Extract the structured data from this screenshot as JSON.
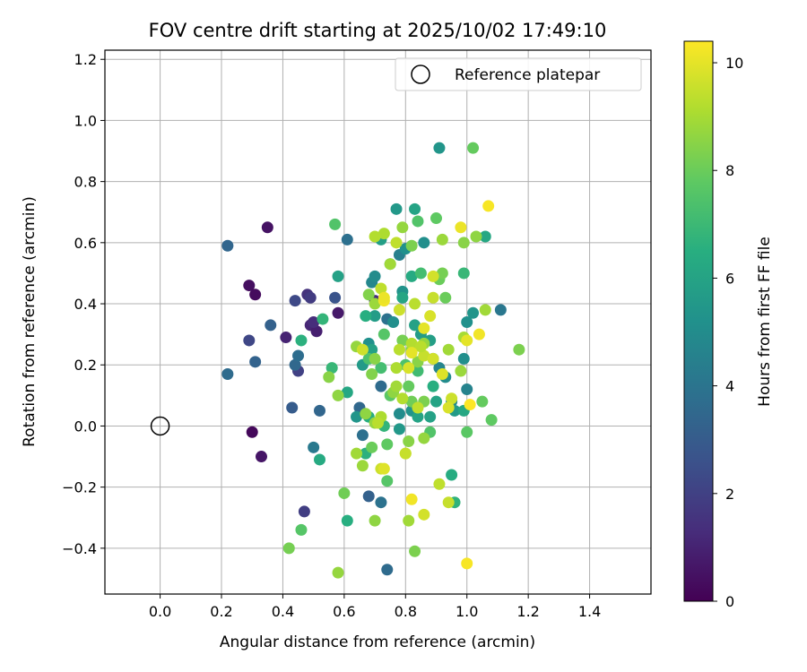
{
  "chart_data": {
    "type": "scatter",
    "title": "FOV centre drift starting at 2025/10/02 17:49:10",
    "xlabel": "Angular distance from reference (arcmin)",
    "ylabel": "Rotation from reference (arcmin)",
    "xlim": [
      -0.18,
      1.6
    ],
    "ylim": [
      -0.55,
      1.23
    ],
    "xticks": [
      0.0,
      0.2,
      0.4,
      0.6,
      0.8,
      1.0,
      1.2,
      1.4
    ],
    "xtick_labels": [
      "0.0",
      "0.2",
      "0.4",
      "0.6",
      "0.8",
      "1.0",
      "1.2",
      "1.4"
    ],
    "yticks": [
      -0.4,
      -0.2,
      0.0,
      0.2,
      0.4,
      0.6,
      0.8,
      1.0,
      1.2
    ],
    "ytick_labels": [
      "−0.4",
      "−0.2",
      "0.0",
      "0.2",
      "0.4",
      "0.6",
      "0.8",
      "1.0",
      "1.2"
    ],
    "grid": true,
    "legend": {
      "location": "top-right",
      "entries": [
        "Reference platepar"
      ]
    },
    "reference_point": {
      "x": 0.0,
      "y": 0.0,
      "label": "Reference platepar"
    },
    "colorbar": {
      "label": "Hours from first FF file",
      "colormap": "viridis",
      "range": [
        0,
        10.4
      ],
      "ticks": [
        0,
        2,
        4,
        6,
        8,
        10
      ],
      "tick_labels": [
        "0",
        "2",
        "4",
        "6",
        "8",
        "10"
      ]
    },
    "points": [
      {
        "x": 0.35,
        "y": 0.65,
        "c": 0.5
      },
      {
        "x": 0.29,
        "y": 0.46,
        "c": 0.4
      },
      {
        "x": 0.31,
        "y": 0.43,
        "c": 0.3
      },
      {
        "x": 0.41,
        "y": 0.29,
        "c": 1.0
      },
      {
        "x": 0.3,
        "y": -0.02,
        "c": 0.2
      },
      {
        "x": 0.33,
        "y": -0.1,
        "c": 0.6
      },
      {
        "x": 0.58,
        "y": 0.37,
        "c": 0.7
      },
      {
        "x": 0.49,
        "y": 0.33,
        "c": 1.1
      },
      {
        "x": 0.51,
        "y": 0.31,
        "c": 0.9
      },
      {
        "x": 0.5,
        "y": 0.34,
        "c": 1.3
      },
      {
        "x": 0.48,
        "y": 0.43,
        "c": 1.5
      },
      {
        "x": 0.49,
        "y": 0.42,
        "c": 1.8
      },
      {
        "x": 0.44,
        "y": 0.41,
        "c": 2.3
      },
      {
        "x": 0.29,
        "y": 0.28,
        "c": 2.2
      },
      {
        "x": 0.47,
        "y": -0.28,
        "c": 1.9
      },
      {
        "x": 0.45,
        "y": 0.18,
        "c": 2.0
      },
      {
        "x": 0.57,
        "y": 0.42,
        "c": 2.7
      },
      {
        "x": 0.7,
        "y": 0.41,
        "c": 1.3
      },
      {
        "x": 0.22,
        "y": 0.59,
        "c": 3.4
      },
      {
        "x": 0.22,
        "y": 0.17,
        "c": 3.6
      },
      {
        "x": 0.31,
        "y": 0.21,
        "c": 3.3
      },
      {
        "x": 0.36,
        "y": 0.33,
        "c": 3.2
      },
      {
        "x": 0.43,
        "y": 0.06,
        "c": 3.0
      },
      {
        "x": 0.44,
        "y": 0.2,
        "c": 3.5
      },
      {
        "x": 0.45,
        "y": 0.23,
        "c": 3.7
      },
      {
        "x": 0.5,
        "y": -0.07,
        "c": 4.2
      },
      {
        "x": 0.52,
        "y": 0.05,
        "c": 3.4
      },
      {
        "x": 0.61,
        "y": 0.61,
        "c": 3.8
      },
      {
        "x": 0.74,
        "y": -0.47,
        "c": 3.6
      },
      {
        "x": 0.68,
        "y": -0.23,
        "c": 3.2
      },
      {
        "x": 0.72,
        "y": -0.25,
        "c": 3.9
      },
      {
        "x": 0.65,
        "y": 0.06,
        "c": 3.5
      },
      {
        "x": 0.66,
        "y": -0.03,
        "c": 3.8
      },
      {
        "x": 0.72,
        "y": 0.13,
        "c": 3.6
      },
      {
        "x": 0.74,
        "y": 0.35,
        "c": 3.9
      },
      {
        "x": 0.91,
        "y": 0.91,
        "c": 5.4
      },
      {
        "x": 1.11,
        "y": 0.38,
        "c": 4.1
      },
      {
        "x": 1.0,
        "y": 0.12,
        "c": 4.6
      },
      {
        "x": 0.86,
        "y": 0.6,
        "c": 5.1
      },
      {
        "x": 0.77,
        "y": 0.71,
        "c": 5.5
      },
      {
        "x": 0.83,
        "y": 0.71,
        "c": 6.0
      },
      {
        "x": 0.78,
        "y": 0.56,
        "c": 4.5
      },
      {
        "x": 0.69,
        "y": 0.47,
        "c": 4.8
      },
      {
        "x": 0.7,
        "y": 0.49,
        "c": 5.0
      },
      {
        "x": 0.8,
        "y": 0.58,
        "c": 5.2
      },
      {
        "x": 0.72,
        "y": 0.61,
        "c": 5.8
      },
      {
        "x": 0.75,
        "y": 0.53,
        "c": 6.4
      },
      {
        "x": 0.58,
        "y": 0.49,
        "c": 5.9
      },
      {
        "x": 0.53,
        "y": 0.35,
        "c": 6.8
      },
      {
        "x": 0.46,
        "y": 0.28,
        "c": 6.6
      },
      {
        "x": 0.56,
        "y": 0.19,
        "c": 6.9
      },
      {
        "x": 0.61,
        "y": 0.11,
        "c": 6.2
      },
      {
        "x": 0.64,
        "y": 0.03,
        "c": 5.4
      },
      {
        "x": 0.68,
        "y": 0.03,
        "c": 6.4
      },
      {
        "x": 0.7,
        "y": 0.36,
        "c": 5.7
      },
      {
        "x": 0.67,
        "y": 0.36,
        "c": 6.5
      },
      {
        "x": 0.68,
        "y": 0.27,
        "c": 5.2
      },
      {
        "x": 0.69,
        "y": 0.25,
        "c": 5.9
      },
      {
        "x": 0.66,
        "y": 0.2,
        "c": 5.6
      },
      {
        "x": 0.76,
        "y": 0.34,
        "c": 5.1
      },
      {
        "x": 0.79,
        "y": 0.44,
        "c": 5.3
      },
      {
        "x": 0.79,
        "y": 0.42,
        "c": 6.1
      },
      {
        "x": 0.82,
        "y": 0.49,
        "c": 6.3
      },
      {
        "x": 0.85,
        "y": 0.3,
        "c": 5.7
      },
      {
        "x": 0.83,
        "y": 0.33,
        "c": 5.9
      },
      {
        "x": 0.78,
        "y": 0.04,
        "c": 5.0
      },
      {
        "x": 0.82,
        "y": 0.05,
        "c": 5.3
      },
      {
        "x": 0.84,
        "y": 0.03,
        "c": 6.0
      },
      {
        "x": 0.78,
        "y": -0.01,
        "c": 5.5
      },
      {
        "x": 0.88,
        "y": 0.28,
        "c": 5.8
      },
      {
        "x": 0.89,
        "y": 0.22,
        "c": 5.6
      },
      {
        "x": 0.91,
        "y": 0.19,
        "c": 4.7
      },
      {
        "x": 0.93,
        "y": 0.16,
        "c": 5.0
      },
      {
        "x": 0.95,
        "y": 0.08,
        "c": 4.8
      },
      {
        "x": 0.9,
        "y": 0.08,
        "c": 6.0
      },
      {
        "x": 0.96,
        "y": 0.05,
        "c": 5.6
      },
      {
        "x": 0.99,
        "y": 0.05,
        "c": 6.2
      },
      {
        "x": 1.0,
        "y": 0.34,
        "c": 5.2
      },
      {
        "x": 1.02,
        "y": 0.37,
        "c": 5.4
      },
      {
        "x": 0.99,
        "y": 0.22,
        "c": 5.1
      },
      {
        "x": 1.06,
        "y": 0.62,
        "c": 6.2
      },
      {
        "x": 0.99,
        "y": 0.5,
        "c": 6.9
      },
      {
        "x": 0.89,
        "y": 0.13,
        "c": 6.5
      },
      {
        "x": 0.88,
        "y": 0.03,
        "c": 5.9
      },
      {
        "x": 0.95,
        "y": -0.16,
        "c": 6.4
      },
      {
        "x": 0.96,
        "y": -0.25,
        "c": 6.7
      },
      {
        "x": 0.61,
        "y": -0.31,
        "c": 6.5
      },
      {
        "x": 0.52,
        "y": -0.11,
        "c": 6.3
      },
      {
        "x": 0.73,
        "y": 0.0,
        "c": 6.8
      },
      {
        "x": 0.67,
        "y": -0.09,
        "c": 6.6
      },
      {
        "x": 0.85,
        "y": 0.5,
        "c": 7.2
      },
      {
        "x": 0.84,
        "y": 0.67,
        "c": 7.5
      },
      {
        "x": 0.9,
        "y": 0.68,
        "c": 7.8
      },
      {
        "x": 1.02,
        "y": 0.91,
        "c": 7.9
      },
      {
        "x": 0.57,
        "y": 0.66,
        "c": 7.5
      },
      {
        "x": 0.73,
        "y": 0.3,
        "c": 7.6
      },
      {
        "x": 0.68,
        "y": 0.22,
        "c": 7.4
      },
      {
        "x": 0.72,
        "y": 0.19,
        "c": 7.2
      },
      {
        "x": 0.75,
        "y": 0.1,
        "c": 7.7
      },
      {
        "x": 0.8,
        "y": 0.2,
        "c": 7.4
      },
      {
        "x": 0.84,
        "y": 0.18,
        "c": 7.1
      },
      {
        "x": 0.91,
        "y": 0.48,
        "c": 8.0
      },
      {
        "x": 0.92,
        "y": 0.5,
        "c": 8.2
      },
      {
        "x": 0.93,
        "y": 0.42,
        "c": 8.0
      },
      {
        "x": 0.81,
        "y": 0.13,
        "c": 7.9
      },
      {
        "x": 0.82,
        "y": 0.08,
        "c": 8.1
      },
      {
        "x": 0.88,
        "y": -0.02,
        "c": 7.5
      },
      {
        "x": 0.74,
        "y": -0.06,
        "c": 7.8
      },
      {
        "x": 0.74,
        "y": -0.18,
        "c": 7.6
      },
      {
        "x": 0.69,
        "y": -0.07,
        "c": 8.0
      },
      {
        "x": 0.6,
        "y": -0.22,
        "c": 8.1
      },
      {
        "x": 0.46,
        "y": -0.34,
        "c": 7.6
      },
      {
        "x": 0.42,
        "y": -0.4,
        "c": 8.2
      },
      {
        "x": 0.83,
        "y": -0.41,
        "c": 8.3
      },
      {
        "x": 1.05,
        "y": 0.08,
        "c": 7.9
      },
      {
        "x": 1.08,
        "y": 0.02,
        "c": 7.8
      },
      {
        "x": 1.0,
        "y": -0.02,
        "c": 7.7
      },
      {
        "x": 1.17,
        "y": 0.25,
        "c": 8.3
      },
      {
        "x": 0.99,
        "y": 0.6,
        "c": 8.5
      },
      {
        "x": 1.03,
        "y": 0.62,
        "c": 8.6
      },
      {
        "x": 0.92,
        "y": 0.61,
        "c": 8.8
      },
      {
        "x": 0.82,
        "y": 0.59,
        "c": 8.3
      },
      {
        "x": 0.79,
        "y": 0.65,
        "c": 8.7
      },
      {
        "x": 0.75,
        "y": 0.53,
        "c": 8.9
      },
      {
        "x": 0.68,
        "y": 0.43,
        "c": 8.4
      },
      {
        "x": 0.7,
        "y": 0.4,
        "c": 8.8
      },
      {
        "x": 0.55,
        "y": 0.16,
        "c": 8.5
      },
      {
        "x": 0.58,
        "y": 0.1,
        "c": 8.6
      },
      {
        "x": 0.64,
        "y": 0.26,
        "c": 8.7
      },
      {
        "x": 0.7,
        "y": 0.22,
        "c": 8.5
      },
      {
        "x": 0.69,
        "y": 0.17,
        "c": 8.4
      },
      {
        "x": 0.67,
        "y": 0.04,
        "c": 8.6
      },
      {
        "x": 0.7,
        "y": 0.01,
        "c": 8.7
      },
      {
        "x": 0.76,
        "y": 0.11,
        "c": 8.6
      },
      {
        "x": 0.77,
        "y": 0.13,
        "c": 8.9
      },
      {
        "x": 0.79,
        "y": 0.28,
        "c": 8.2
      },
      {
        "x": 0.82,
        "y": 0.25,
        "c": 8.4
      },
      {
        "x": 0.84,
        "y": 0.21,
        "c": 8.5
      },
      {
        "x": 0.86,
        "y": 0.27,
        "c": 8.7
      },
      {
        "x": 0.86,
        "y": 0.08,
        "c": 8.3
      },
      {
        "x": 0.81,
        "y": -0.05,
        "c": 8.5
      },
      {
        "x": 0.86,
        "y": -0.04,
        "c": 8.7
      },
      {
        "x": 0.64,
        "y": -0.09,
        "c": 8.9
      },
      {
        "x": 0.66,
        "y": -0.13,
        "c": 8.8
      },
      {
        "x": 0.7,
        "y": -0.31,
        "c": 8.6
      },
      {
        "x": 0.81,
        "y": -0.31,
        "c": 8.9
      },
      {
        "x": 0.58,
        "y": -0.48,
        "c": 8.7
      },
      {
        "x": 0.94,
        "y": 0.25,
        "c": 8.9
      },
      {
        "x": 0.98,
        "y": 0.18,
        "c": 8.8
      },
      {
        "x": 1.06,
        "y": 0.38,
        "c": 8.9
      },
      {
        "x": 0.99,
        "y": 0.29,
        "c": 9.0
      },
      {
        "x": 0.89,
        "y": 0.42,
        "c": 9.5
      },
      {
        "x": 0.89,
        "y": 0.49,
        "c": 9.7
      },
      {
        "x": 0.88,
        "y": 0.36,
        "c": 9.8
      },
      {
        "x": 0.86,
        "y": 0.32,
        "c": 10.0
      },
      {
        "x": 0.83,
        "y": 0.4,
        "c": 9.3
      },
      {
        "x": 0.73,
        "y": 0.63,
        "c": 9.1
      },
      {
        "x": 0.77,
        "y": 0.6,
        "c": 9.4
      },
      {
        "x": 0.7,
        "y": 0.62,
        "c": 9.2
      },
      {
        "x": 0.78,
        "y": 0.38,
        "c": 9.6
      },
      {
        "x": 0.77,
        "y": 0.19,
        "c": 9.1
      },
      {
        "x": 0.78,
        "y": 0.25,
        "c": 9.3
      },
      {
        "x": 0.82,
        "y": 0.27,
        "c": 9.2
      },
      {
        "x": 0.86,
        "y": 0.23,
        "c": 9.5
      },
      {
        "x": 0.85,
        "y": 0.26,
        "c": 9.3
      },
      {
        "x": 0.79,
        "y": 0.09,
        "c": 9.2
      },
      {
        "x": 0.84,
        "y": 0.06,
        "c": 9.4
      },
      {
        "x": 0.72,
        "y": 0.03,
        "c": 9.1
      },
      {
        "x": 0.71,
        "y": 0.01,
        "c": 9.3
      },
      {
        "x": 0.66,
        "y": 0.25,
        "c": 9.6
      },
      {
        "x": 0.72,
        "y": 0.45,
        "c": 9.4
      },
      {
        "x": 0.73,
        "y": 0.41,
        "c": 10.2
      },
      {
        "x": 0.81,
        "y": 0.19,
        "c": 9.8
      },
      {
        "x": 0.82,
        "y": 0.24,
        "c": 10.0
      },
      {
        "x": 0.89,
        "y": 0.22,
        "c": 9.7
      },
      {
        "x": 0.92,
        "y": 0.17,
        "c": 9.9
      },
      {
        "x": 0.95,
        "y": 0.09,
        "c": 9.6
      },
      {
        "x": 0.94,
        "y": 0.06,
        "c": 9.8
      },
      {
        "x": 0.8,
        "y": -0.09,
        "c": 9.8
      },
      {
        "x": 0.72,
        "y": -0.14,
        "c": 9.6
      },
      {
        "x": 0.73,
        "y": -0.14,
        "c": 9.9
      },
      {
        "x": 0.8,
        "y": -0.09,
        "c": 9.5
      },
      {
        "x": 0.91,
        "y": -0.19,
        "c": 9.4
      },
      {
        "x": 0.94,
        "y": -0.25,
        "c": 9.5
      },
      {
        "x": 0.86,
        "y": -0.29,
        "c": 9.7
      },
      {
        "x": 0.82,
        "y": -0.24,
        "c": 10.2
      },
      {
        "x": 0.98,
        "y": 0.65,
        "c": 10.1
      },
      {
        "x": 1.07,
        "y": 0.72,
        "c": 10.3
      },
      {
        "x": 1.0,
        "y": 0.28,
        "c": 10.0
      },
      {
        "x": 1.04,
        "y": 0.3,
        "c": 10.2
      },
      {
        "x": 1.01,
        "y": 0.07,
        "c": 10.4
      },
      {
        "x": 1.0,
        "y": -0.45,
        "c": 10.3
      },
      {
        "x": 0.73,
        "y": 0.42,
        "c": 10.1
      }
    ]
  }
}
